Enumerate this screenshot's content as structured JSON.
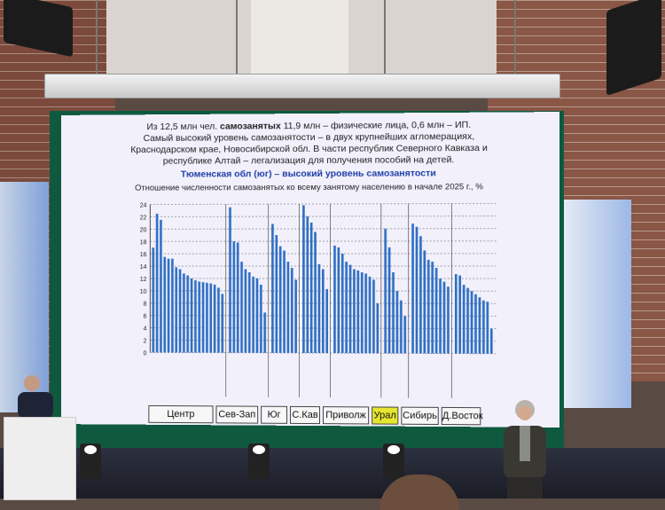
{
  "slide": {
    "line1_prefix": "Из 12,5 млн чел.",
    "line1_bold": "самозанятых",
    "line1_suffix": "11,9 млн – физические лица, 0,6 млн – ИП.",
    "line2": "Самый высокий уровень самозанятости – в двух крупнейших агломерациях,",
    "line3": "Краснодарском крае, Новосибирской обл. В части республик Северного Кавказа и",
    "line4": "республике Алтай –  легализация для получения пособий на детей.",
    "highlight": "Тюменская обл (юг) – высокий уровень самозанятости",
    "chart_title": "Отношение численности самозанятых ко всему занятому населению в начале 2025 г., %"
  },
  "chart_data": {
    "type": "bar",
    "ylim": [
      0,
      24
    ],
    "yticks": [
      "0",
      "2",
      "4",
      "6",
      "8",
      "10",
      "12",
      "14",
      "16",
      "18",
      "20",
      "22",
      "24"
    ],
    "color": "#2f6fc4",
    "grid": true,
    "groups": [
      {
        "name": "Центр",
        "values": [
          17,
          22.5,
          21.5,
          15.5,
          15.2,
          15.2,
          13.8,
          13.5,
          12.8,
          12.5,
          12,
          11.7,
          11.5,
          11.4,
          11.3,
          11.2,
          11,
          10.5,
          9.5
        ]
      },
      {
        "name": "Сев-Зап",
        "values": [
          23.5,
          18,
          17.8,
          14.7,
          13.5,
          13,
          12.3,
          12,
          11,
          6.5
        ]
      },
      {
        "name": "Юг",
        "values": [
          20.8,
          19,
          17.2,
          16.5,
          14.7,
          13.7,
          11.8
        ]
      },
      {
        "name": "С.Кав",
        "values": [
          23.8,
          22,
          21,
          19.5,
          14.3,
          13.5,
          10.3
        ]
      },
      {
        "name": "Приволж",
        "values": [
          17.3,
          17,
          16,
          14.7,
          14.2,
          13.5,
          13.3,
          13,
          12.8,
          12.3,
          11.8,
          8
        ]
      },
      {
        "name": "Урал",
        "values": [
          20,
          17,
          13,
          10,
          8.5,
          6
        ]
      },
      {
        "name": "Сибирь",
        "values": [
          20.8,
          20.3,
          18.8,
          16.5,
          15,
          14.7,
          13.7,
          12,
          11.5,
          10.7
        ]
      },
      {
        "name": "Д.Восток",
        "values": [
          12.7,
          12.5,
          11,
          10.5,
          10,
          9.5,
          9,
          8.5,
          8.3,
          4
        ]
      }
    ],
    "regions": [
      "Центр",
      "Сев-Зап",
      "Юг",
      "С.Кав",
      "Приволж",
      "Урал",
      "Сибирь",
      "Д.Восток"
    ],
    "highlighted_region": "Урал"
  }
}
